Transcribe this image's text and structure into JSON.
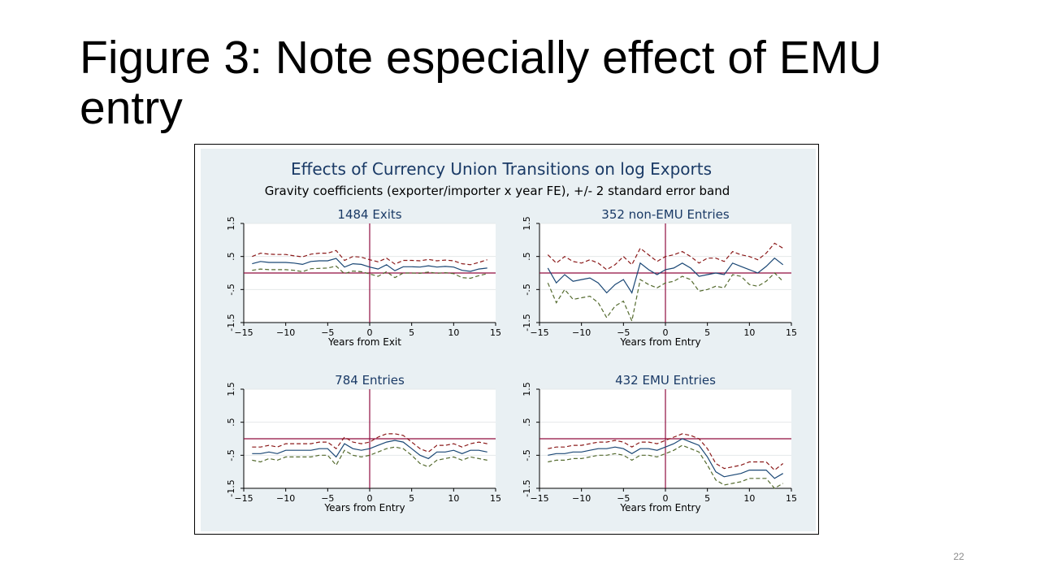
{
  "slide": {
    "title": "Figure 3: Note especially effect of EMU entry",
    "page_number": "22"
  },
  "colors": {
    "background": "#e9f0f3",
    "plot_bg": "#ffffff",
    "estimate": "#1a4775",
    "upper_band": "#8b1a1a",
    "lower_band": "#556b2f",
    "zero_line": "#900c3f",
    "title_text": "#1a3a66",
    "grid": "#e4e8ea"
  },
  "chart_data": {
    "type": "line",
    "title": "Effects of Currency Union Transitions on log Exports",
    "subtitle": "Gravity coefficients (exporter/importer x year FE), +/- 2 standard error band",
    "panels": [
      {
        "title": "1484 Exits",
        "xlabel": "Years from Exit",
        "xlim": [
          -15,
          15
        ],
        "ylim": [
          -1.5,
          1.5
        ],
        "x_ticks": [
          "-15",
          "-10",
          "-5",
          "0",
          "5",
          "10",
          "15"
        ],
        "y_ticks": [
          "-1.5",
          "-.5",
          ".5",
          "1.5"
        ],
        "grid": true,
        "x": [
          -14,
          -13,
          -12,
          -11,
          -10,
          -9,
          -8,
          -7,
          -6,
          -5,
          -4,
          -3,
          -2,
          -1,
          0,
          1,
          2,
          3,
          4,
          5,
          6,
          7,
          8,
          9,
          10,
          11,
          12,
          13,
          14
        ],
        "series": [
          {
            "role": "estimate",
            "values": [
              0.28,
              0.35,
              0.32,
              0.32,
              0.32,
              0.3,
              0.26,
              0.35,
              0.37,
              0.37,
              0.44,
              0.18,
              0.28,
              0.26,
              0.18,
              0.12,
              0.25,
              0.07,
              0.19,
              0.19,
              0.18,
              0.22,
              0.18,
              0.2,
              0.18,
              0.08,
              0.05,
              0.12,
              0.15
            ]
          },
          {
            "role": "upper",
            "values": [
              0.5,
              0.6,
              0.57,
              0.56,
              0.56,
              0.52,
              0.49,
              0.57,
              0.6,
              0.6,
              0.68,
              0.38,
              0.5,
              0.48,
              0.4,
              0.34,
              0.45,
              0.27,
              0.38,
              0.38,
              0.37,
              0.41,
              0.37,
              0.39,
              0.37,
              0.28,
              0.25,
              0.32,
              0.4
            ]
          },
          {
            "role": "lower",
            "values": [
              0.08,
              0.12,
              0.1,
              0.1,
              0.1,
              0.08,
              0.04,
              0.13,
              0.14,
              0.15,
              0.21,
              -0.02,
              0.06,
              0.04,
              -0.03,
              -0.1,
              0.04,
              -0.14,
              0.0,
              0.0,
              -0.01,
              0.03,
              -0.01,
              0.01,
              -0.02,
              -0.14,
              -0.16,
              -0.08,
              -0.02
            ]
          }
        ]
      },
      {
        "title": "352 non-EMU Entries",
        "xlabel": "Years from Entry",
        "xlim": [
          -15,
          15
        ],
        "ylim": [
          -1.5,
          1.5
        ],
        "x_ticks": [
          "-15",
          "-10",
          "-5",
          "0",
          "5",
          "10",
          "15"
        ],
        "y_ticks": [
          "-1.5",
          "-.5",
          ".5",
          "1.5"
        ],
        "grid": true,
        "x": [
          -14,
          -13,
          -12,
          -11,
          -10,
          -9,
          -8,
          -7,
          -6,
          -5,
          -4,
          -3,
          -2,
          -1,
          0,
          1,
          2,
          3,
          4,
          5,
          6,
          7,
          8,
          9,
          10,
          11,
          12,
          13,
          14
        ],
        "series": [
          {
            "role": "estimate",
            "values": [
              0.15,
              -0.3,
              -0.05,
              -0.25,
              -0.2,
              -0.15,
              -0.3,
              -0.6,
              -0.35,
              -0.2,
              -0.6,
              0.3,
              0.1,
              -0.05,
              0.1,
              0.15,
              0.3,
              0.15,
              -0.1,
              -0.05,
              0.0,
              -0.05,
              0.3,
              0.2,
              0.1,
              0.0,
              0.2,
              0.45,
              0.25
            ]
          },
          {
            "role": "upper",
            "values": [
              0.55,
              0.3,
              0.5,
              0.35,
              0.3,
              0.4,
              0.3,
              0.1,
              0.25,
              0.5,
              0.25,
              0.75,
              0.55,
              0.35,
              0.5,
              0.55,
              0.65,
              0.5,
              0.3,
              0.45,
              0.45,
              0.35,
              0.65,
              0.55,
              0.5,
              0.4,
              0.6,
              0.9,
              0.75
            ]
          },
          {
            "role": "lower",
            "values": [
              -0.3,
              -0.9,
              -0.5,
              -0.8,
              -0.75,
              -0.7,
              -0.9,
              -1.35,
              -1.0,
              -0.85,
              -1.45,
              -0.2,
              -0.35,
              -0.45,
              -0.3,
              -0.25,
              -0.1,
              -0.2,
              -0.55,
              -0.5,
              -0.4,
              -0.45,
              -0.05,
              -0.1,
              -0.35,
              -0.4,
              -0.25,
              0.0,
              -0.25
            ]
          }
        ]
      },
      {
        "title": "784 Entries",
        "xlabel": "Years from Entry",
        "xlim": [
          -15,
          15
        ],
        "ylim": [
          -1.5,
          1.5
        ],
        "x_ticks": [
          "-15",
          "-10",
          "-5",
          "0",
          "5",
          "10",
          "15"
        ],
        "y_ticks": [
          "-1.5",
          "-.5",
          ".5",
          "1.5"
        ],
        "grid": true,
        "x": [
          -14,
          -13,
          -12,
          -11,
          -10,
          -9,
          -8,
          -7,
          -6,
          -5,
          -4,
          -3,
          -2,
          -1,
          0,
          1,
          2,
          3,
          4,
          5,
          6,
          7,
          8,
          9,
          10,
          11,
          12,
          13,
          14
        ],
        "series": [
          {
            "role": "estimate",
            "values": [
              -0.45,
              -0.45,
              -0.4,
              -0.45,
              -0.35,
              -0.35,
              -0.35,
              -0.35,
              -0.3,
              -0.3,
              -0.55,
              -0.15,
              -0.3,
              -0.35,
              -0.3,
              -0.2,
              -0.1,
              -0.05,
              -0.1,
              -0.3,
              -0.5,
              -0.6,
              -0.4,
              -0.4,
              -0.35,
              -0.45,
              -0.35,
              -0.35,
              -0.4
            ]
          },
          {
            "role": "upper",
            "values": [
              -0.25,
              -0.25,
              -0.2,
              -0.25,
              -0.15,
              -0.15,
              -0.15,
              -0.15,
              -0.1,
              -0.1,
              -0.3,
              0.05,
              -0.1,
              -0.15,
              -0.1,
              0.05,
              0.15,
              0.15,
              0.1,
              -0.1,
              -0.3,
              -0.4,
              -0.2,
              -0.2,
              -0.15,
              -0.25,
              -0.15,
              -0.1,
              -0.15
            ]
          },
          {
            "role": "lower",
            "values": [
              -0.65,
              -0.7,
              -0.6,
              -0.65,
              -0.55,
              -0.55,
              -0.55,
              -0.55,
              -0.5,
              -0.5,
              -0.8,
              -0.35,
              -0.5,
              -0.55,
              -0.5,
              -0.4,
              -0.3,
              -0.25,
              -0.3,
              -0.5,
              -0.75,
              -0.85,
              -0.65,
              -0.6,
              -0.55,
              -0.65,
              -0.55,
              -0.6,
              -0.65
            ]
          }
        ]
      },
      {
        "title": "432 EMU Entries",
        "xlabel": "Years from Entry",
        "xlim": [
          -15,
          15
        ],
        "ylim": [
          -1.5,
          1.5
        ],
        "x_ticks": [
          "-15",
          "-10",
          "-5",
          "0",
          "5",
          "10",
          "15"
        ],
        "y_ticks": [
          "-1.5",
          "-.5",
          ".5",
          "1.5"
        ],
        "grid": true,
        "x": [
          -14,
          -13,
          -12,
          -11,
          -10,
          -9,
          -8,
          -7,
          -6,
          -5,
          -4,
          -3,
          -2,
          -1,
          0,
          1,
          2,
          3,
          4,
          5,
          6,
          7,
          8,
          9,
          10,
          11,
          12,
          13,
          14
        ],
        "series": [
          {
            "role": "estimate",
            "values": [
              -0.5,
              -0.45,
              -0.45,
              -0.4,
              -0.4,
              -0.35,
              -0.3,
              -0.3,
              -0.25,
              -0.3,
              -0.45,
              -0.3,
              -0.3,
              -0.35,
              -0.25,
              -0.15,
              0.0,
              -0.1,
              -0.2,
              -0.55,
              -1.0,
              -1.15,
              -1.1,
              -1.05,
              -0.95,
              -0.95,
              -0.95,
              -1.2,
              -1.05
            ]
          },
          {
            "role": "upper",
            "values": [
              -0.3,
              -0.25,
              -0.25,
              -0.2,
              -0.2,
              -0.15,
              -0.1,
              -0.1,
              -0.05,
              -0.1,
              -0.25,
              -0.1,
              -0.1,
              -0.15,
              -0.05,
              0.05,
              0.15,
              0.1,
              0.0,
              -0.3,
              -0.75,
              -0.9,
              -0.85,
              -0.8,
              -0.7,
              -0.7,
              -0.7,
              -0.95,
              -0.75
            ]
          },
          {
            "role": "lower",
            "values": [
              -0.7,
              -0.65,
              -0.65,
              -0.6,
              -0.6,
              -0.55,
              -0.5,
              -0.5,
              -0.45,
              -0.5,
              -0.65,
              -0.5,
              -0.5,
              -0.55,
              -0.45,
              -0.35,
              -0.2,
              -0.3,
              -0.4,
              -0.8,
              -1.25,
              -1.4,
              -1.35,
              -1.3,
              -1.2,
              -1.2,
              -1.2,
              -1.5,
              -1.35
            ]
          }
        ]
      }
    ]
  }
}
